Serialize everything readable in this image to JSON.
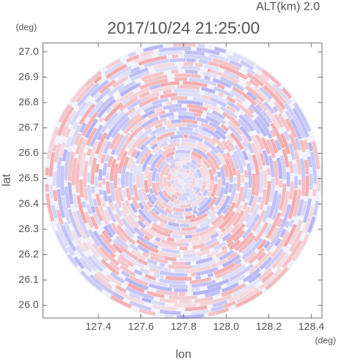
{
  "chart_data": {
    "type": "radar-ppi",
    "header": "ALT(km) 2.0",
    "title": "2017/10/24 21:25:00",
    "x_label": "lon",
    "y_label": "lat",
    "x_unit": "(deg)",
    "y_unit": "(deg)",
    "xlim": [
      127.14,
      128.45
    ],
    "ylim": [
      25.95,
      27.035
    ],
    "xticks": [
      127.4,
      127.6,
      127.8,
      {
        "value": 128,
        "label": "128.0"
      },
      128.2,
      128.4
    ],
    "yticks": [
      {
        "value": 26,
        "label": "26.0"
      },
      26.1,
      26.2,
      26.3,
      26.4,
      26.5,
      26.6,
      26.7,
      26.8,
      26.9,
      {
        "value": 27,
        "label": "27.0"
      }
    ],
    "colors": [
      "#f5a9a9",
      "#b3b3f5"
    ]
  }
}
